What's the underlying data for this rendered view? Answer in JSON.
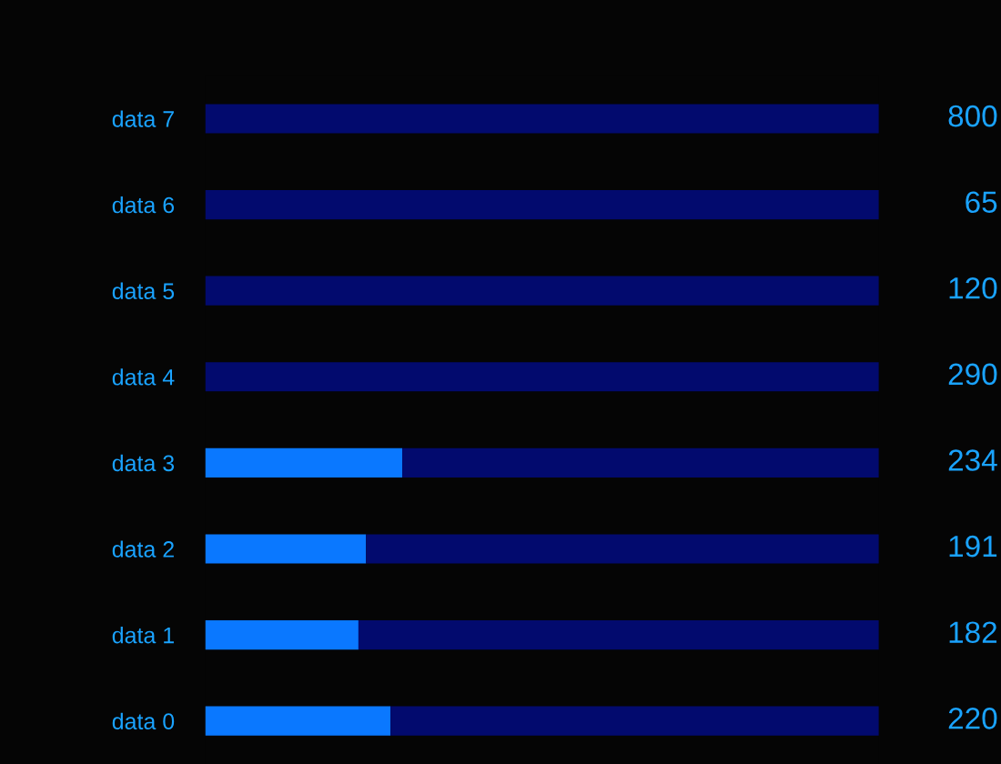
{
  "chart_data": {
    "type": "bar",
    "orientation": "horizontal",
    "categories": [
      "data 7",
      "data 6",
      "data 5",
      "data 4",
      "data 3",
      "data 2",
      "data 1",
      "data 0"
    ],
    "xlim": [
      0,
      800
    ],
    "series": [
      {
        "color": "#0a78ff",
        "values": [
          null,
          null,
          null,
          null,
          234,
          191,
          182,
          220
        ],
        "value_labels": [
          "800",
          "65",
          "120",
          "290",
          "234",
          "191",
          "182",
          "220"
        ]
      },
      {
        "color": "#020a6e",
        "values": [
          800,
          800,
          800,
          800,
          566,
          609,
          618,
          580
        ]
      }
    ],
    "stacked": true,
    "tick_labels": "y",
    "grid": false,
    "legend": false
  }
}
